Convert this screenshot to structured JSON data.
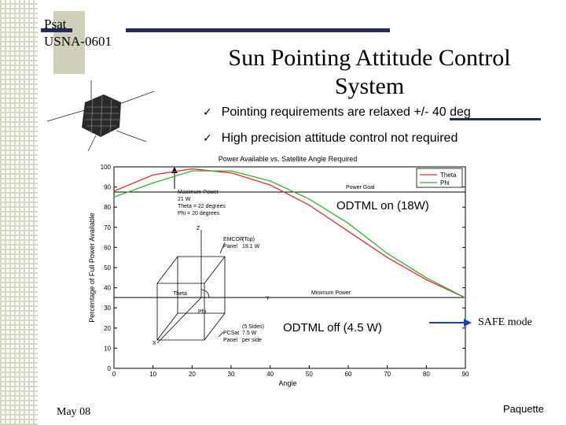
{
  "header": {
    "slide_id_line1": "Psat",
    "slide_id_line2": "USNA-0601",
    "title_line1": "Sun Pointing Attitude Control",
    "title_line2": "System"
  },
  "bullets": [
    {
      "text": "Pointing requirements are relaxed +/- 40 deg"
    },
    {
      "text": "High precision attitude control not required"
    }
  ],
  "chart_data": {
    "type": "line",
    "title": "Power Available vs. Satellite Angle Required",
    "xlabel": "Angle",
    "ylabel": "Percentage of Full Power Available",
    "xlim": [
      0,
      90
    ],
    "ylim": [
      0,
      100
    ],
    "xticks": [
      "0",
      "10",
      "20",
      "30",
      "40",
      "50",
      "60",
      "70",
      "80",
      "90"
    ],
    "yticks": [
      "0",
      "10",
      "20",
      "30",
      "40",
      "50",
      "60",
      "70",
      "80",
      "90",
      "100"
    ],
    "legend_position": "top-right",
    "series": [
      {
        "name": "Theta",
        "color": "#e0302c",
        "x": [
          0,
          10,
          20,
          30,
          40,
          50,
          60,
          70,
          80,
          90
        ],
        "y": [
          88,
          96,
          99,
          97,
          91,
          81,
          68,
          55,
          44,
          35
        ]
      },
      {
        "name": "Phi",
        "color": "#33b233",
        "x": [
          0,
          10,
          20,
          30,
          40,
          50,
          60,
          70,
          80,
          90
        ],
        "y": [
          85,
          92,
          98,
          98,
          93,
          84,
          72,
          57,
          45,
          35
        ]
      }
    ],
    "annotations": {
      "max_power_title": "Maximum Power",
      "max_power_watts": "21 W",
      "max_power_theta": "Theta = 22 degrees",
      "max_power_phi": "Phi = 20 degrees",
      "power_goal": "Power Goal",
      "minimum_power": "Minimum Power",
      "emcor_line1": "EMCOR",
      "emcor_line2": "(Top)",
      "emcor_line3": "Panel",
      "emcor_line4": "19.1 W",
      "pcsat_line1": "(5 Sides)",
      "pcsat_line2": "PCSat",
      "pcsat_line3": "7.5 W",
      "pcsat_line4": "Panel",
      "pcsat_line5": "per side",
      "axis_z": "Z",
      "axis_y": "Y",
      "axis_x": "X",
      "label_theta": "Theta",
      "label_phi": "Phi"
    }
  },
  "callouts": {
    "odtml_on": "ODTML on (18W)",
    "odtml_off": "ODTML off (4.5 W)",
    "safe_mode": "SAFE mode"
  },
  "footer": {
    "date": "May 08",
    "author": "Paquette"
  }
}
